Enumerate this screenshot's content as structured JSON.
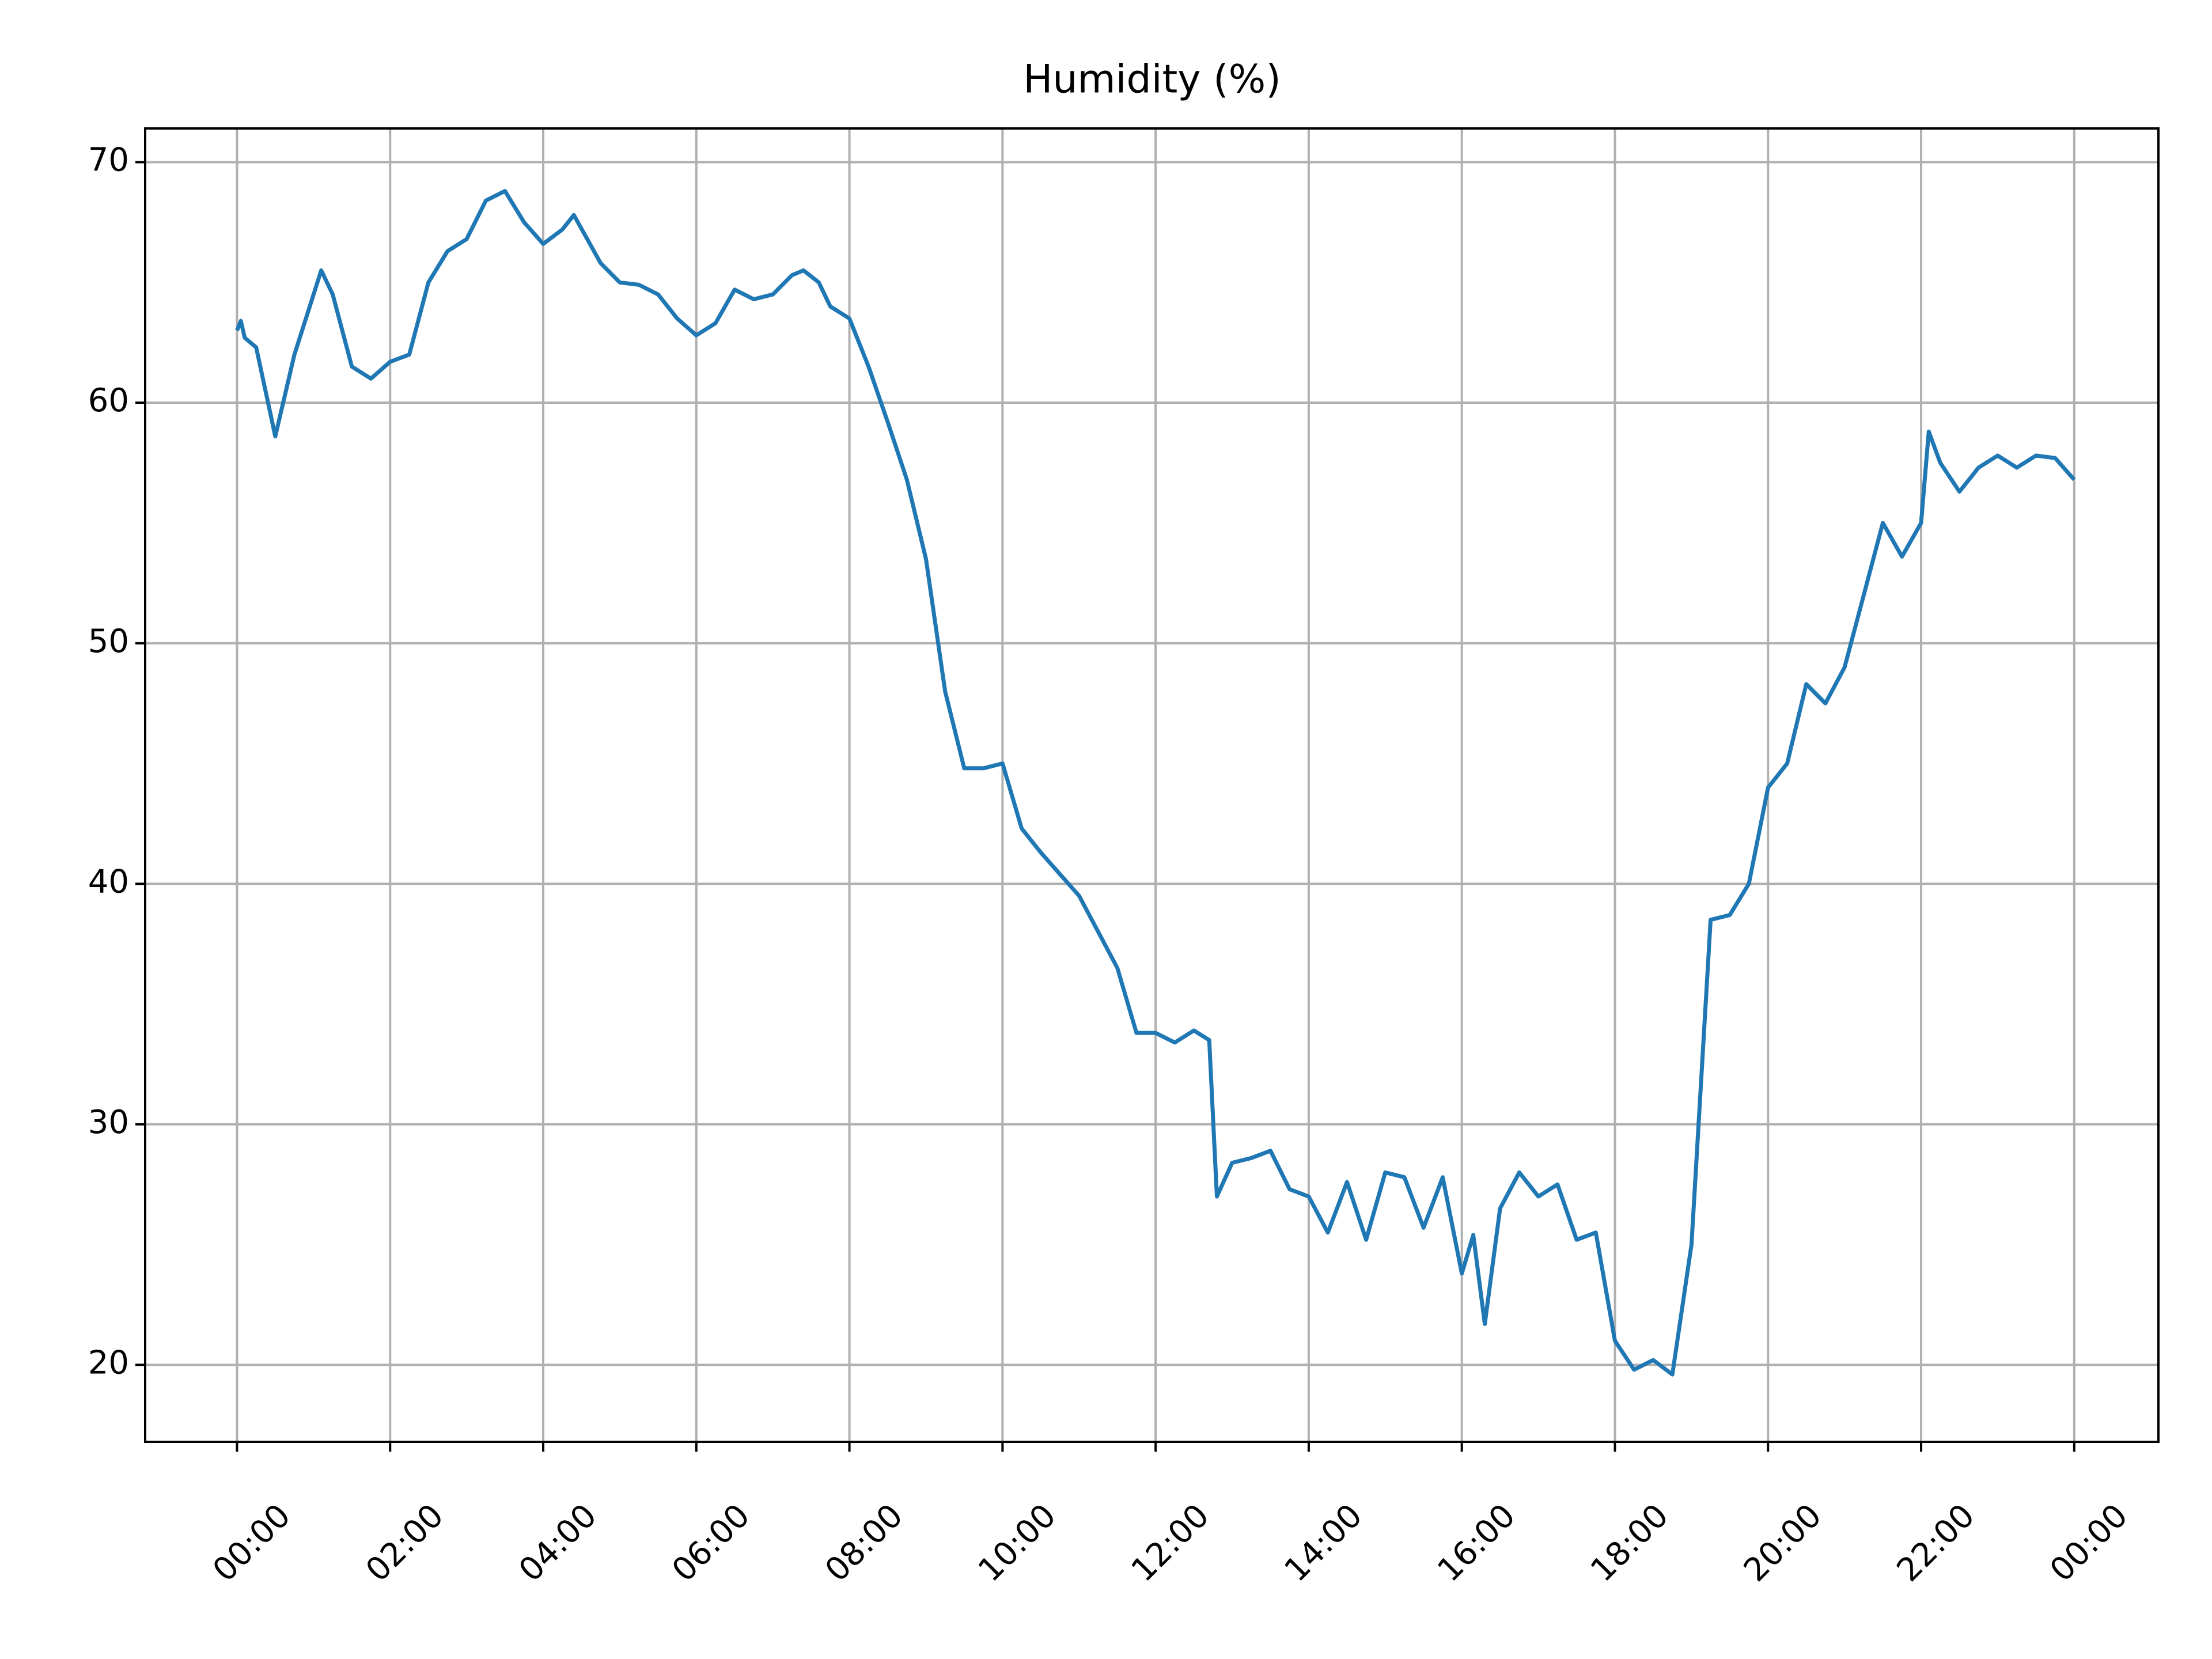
{
  "chart_data": {
    "type": "line",
    "title": "Humidity (%)",
    "x": [
      0,
      0.05,
      0.1,
      0.25,
      0.5,
      0.75,
      1.0,
      1.1,
      1.25,
      1.5,
      1.75,
      2.0,
      2.25,
      2.5,
      2.75,
      3.0,
      3.25,
      3.5,
      3.75,
      4.0,
      4.25,
      4.4,
      4.75,
      5.0,
      5.25,
      5.5,
      5.75,
      6.0,
      6.25,
      6.5,
      6.75,
      7.0,
      7.25,
      7.4,
      7.6,
      7.75,
      8.0,
      8.25,
      8.5,
      8.75,
      9.0,
      9.25,
      9.5,
      9.75,
      10.0,
      10.25,
      10.5,
      10.75,
      11.0,
      11.25,
      11.5,
      11.75,
      12.0,
      12.25,
      12.5,
      12.7,
      12.8,
      13.0,
      13.25,
      13.5,
      13.75,
      14.0,
      14.25,
      14.5,
      14.75,
      15.0,
      15.25,
      15.5,
      15.75,
      16.0,
      16.15,
      16.3,
      16.5,
      16.75,
      17.0,
      17.25,
      17.5,
      17.75,
      18.0,
      18.25,
      18.5,
      18.75,
      19.0,
      19.25,
      19.5,
      19.75,
      20.0,
      20.25,
      20.5,
      20.75,
      21.0,
      21.25,
      21.5,
      21.75,
      22.0,
      22.1,
      22.25,
      22.5,
      22.75,
      23.0,
      23.25,
      23.5,
      23.75,
      24.0
    ],
    "series": [
      {
        "name": "Humidity",
        "color": "#1f77b4",
        "values": [
          63,
          63.4,
          62.7,
          62.3,
          58.6,
          62,
          64.5,
          65.5,
          64.5,
          61.5,
          61,
          61.7,
          62,
          65,
          66.3,
          66.8,
          68.4,
          68.8,
          67.5,
          66.6,
          67.2,
          67.8,
          65.8,
          65,
          64.9,
          64.5,
          63.5,
          62.8,
          63.3,
          64.7,
          64.3,
          64.5,
          65.3,
          65.5,
          65,
          64,
          63.5,
          61.5,
          59.2,
          56.8,
          53.5,
          48,
          44.8,
          44.8,
          45,
          42.3,
          41.3,
          40.4,
          39.5,
          38,
          36.5,
          33.8,
          33.8,
          33.4,
          33.9,
          33.5,
          27,
          28.4,
          28.6,
          28.9,
          27.3,
          27,
          25.5,
          27.6,
          25.2,
          28,
          27.8,
          25.7,
          27.8,
          23.8,
          25.4,
          21.7,
          26.5,
          28,
          27,
          27.5,
          25.2,
          25.5,
          21,
          19.8,
          20.2,
          19.6,
          25,
          38.5,
          38.7,
          40,
          44,
          45,
          48.3,
          47.5,
          49,
          52,
          55,
          53.6,
          55,
          58.8,
          57.5,
          56.3,
          57.3,
          57.8,
          57.3,
          57.8,
          57.7,
          56.8
        ]
      }
    ],
    "xlim": [
      -1.2,
      25.1
    ],
    "xticks": [
      {
        "value": 0,
        "label": "00:00"
      },
      {
        "value": 2,
        "label": "02:00"
      },
      {
        "value": 4,
        "label": "04:00"
      },
      {
        "value": 6,
        "label": "06:00"
      },
      {
        "value": 8,
        "label": "08:00"
      },
      {
        "value": 10,
        "label": "10:00"
      },
      {
        "value": 12,
        "label": "12:00"
      },
      {
        "value": 14,
        "label": "14:00"
      },
      {
        "value": 16,
        "label": "16:00"
      },
      {
        "value": 18,
        "label": "18:00"
      },
      {
        "value": 20,
        "label": "20:00"
      },
      {
        "value": 22,
        "label": "22:00"
      },
      {
        "value": 24,
        "label": "00:00"
      }
    ],
    "ylim": [
      16.8,
      71.4
    ],
    "yticks": [
      20,
      30,
      40,
      50,
      60,
      70
    ],
    "grid": true
  }
}
